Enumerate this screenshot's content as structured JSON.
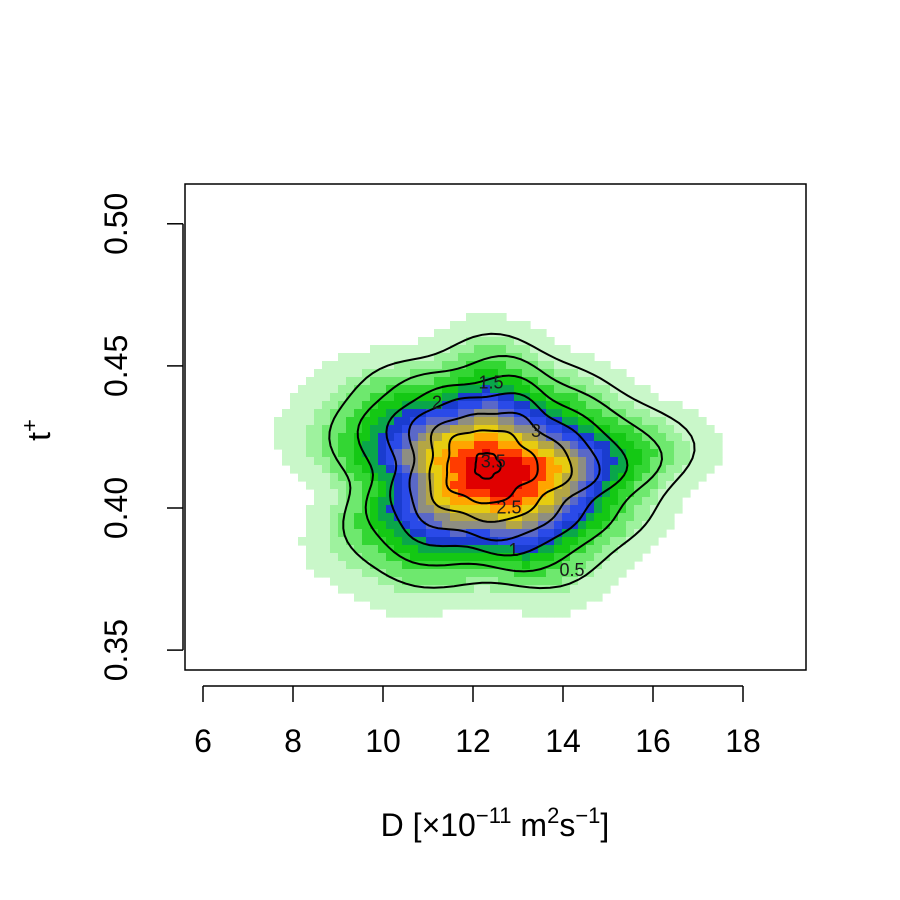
{
  "chart_data": {
    "type": "heatmap",
    "subtype": "2D density with labeled contour lines",
    "title": "",
    "xlabel": {
      "base": "D [",
      "times": "×",
      "mantissa": "10",
      "exp1": "−11",
      "unit1": " m",
      "exp2": "2",
      "unit2": "s",
      "exp3": "−1",
      "close": "]"
    },
    "ylabel": {
      "base": "t",
      "sup": "+"
    },
    "xlim": [
      5.6,
      19.4
    ],
    "ylim": [
      0.343,
      0.514
    ],
    "x_ticks": [
      6,
      8,
      10,
      12,
      14,
      16,
      18
    ],
    "x_tick_labels": [
      "6",
      "8",
      "10",
      "12",
      "14",
      "16",
      "18"
    ],
    "y_ticks": [
      0.35,
      0.4,
      0.45,
      0.5
    ],
    "y_tick_labels": [
      "0.35",
      "0.40",
      "0.45",
      "0.50"
    ],
    "grid": false,
    "legend": "none",
    "density": {
      "peak_x": 12.3,
      "peak_y": 0.413,
      "sigma_x": 1.85,
      "sigma_y": 0.0205,
      "max_density": 3.6,
      "x_range": [
        7.0,
        17.8
      ],
      "y_range": [
        0.358,
        0.478
      ]
    },
    "colors": {
      "levels": [
        0.15,
        0.35,
        0.5,
        0.75,
        1.0,
        1.25,
        1.5,
        1.75,
        2.0,
        2.25,
        2.5,
        2.75,
        3.0,
        3.25,
        3.5
      ],
      "palette": [
        "#e8fce8",
        "#c9f7c9",
        "#9ef29e",
        "#6ee86e",
        "#33d633",
        "#14c814",
        "#0aa64a",
        "#1a3ccf",
        "#2a4ae8",
        "#5a68c8",
        "#8e8e82",
        "#b4a644",
        "#e6cc10",
        "#ffa500",
        "#ff3c00",
        "#e00000"
      ]
    },
    "contour_lines": [
      {
        "level": 0.5,
        "label": "0.5",
        "rx": 3.85,
        "ry": 0.0438,
        "label_x": 14.2,
        "label_y": 0.3785
      },
      {
        "level": 1.0,
        "label": "1",
        "rx": 3.2,
        "ry": 0.0368,
        "label_x": 12.9,
        "label_y": 0.3855
      },
      {
        "level": 1.5,
        "label": "1.5",
        "rx": 2.55,
        "ry": 0.0307,
        "label_x": 12.4,
        "label_y": 0.4445
      },
      {
        "level": 2.0,
        "label": "2",
        "rx": 2.05,
        "ry": 0.0253,
        "label_x": 11.2,
        "label_y": 0.4375
      },
      {
        "level": 2.5,
        "label": "2.5",
        "rx": 1.55,
        "ry": 0.019,
        "label_x": 12.8,
        "label_y": 0.4005
      },
      {
        "level": 3.0,
        "label": "3",
        "rx": 1.0,
        "ry": 0.0128,
        "label_x": 13.4,
        "label_y": 0.4275
      },
      {
        "level": 3.5,
        "label": "3.5",
        "rx": 0.28,
        "ry": 0.0045,
        "label_x": 12.45,
        "label_y": 0.4168
      }
    ]
  }
}
